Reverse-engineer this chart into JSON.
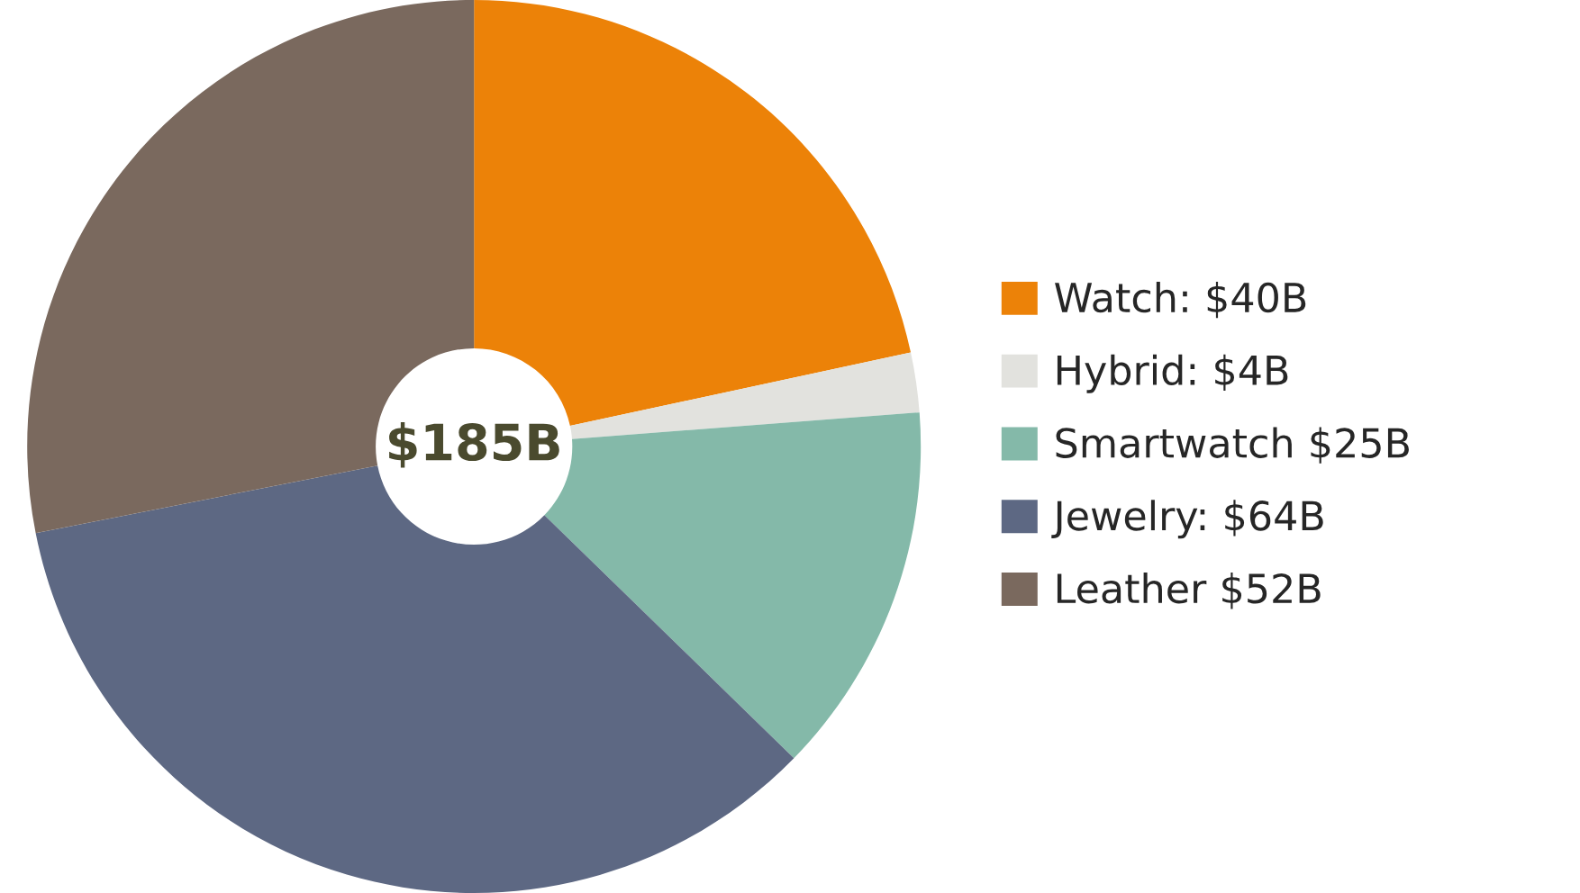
{
  "chart_data": {
    "type": "donut",
    "categories": [
      "Watch: $40B",
      "Hybrid: $4B",
      "Smartwatch $25B",
      "Jewelry: $64B",
      "Leather $52B"
    ],
    "values": [
      40,
      4,
      25,
      64,
      52
    ],
    "colors": [
      "#ec8208",
      "#e2e2de",
      "#84b9a9",
      "#5d6883",
      "#7a695e"
    ],
    "annotations": [
      "$185B"
    ],
    "legend": "right"
  }
}
